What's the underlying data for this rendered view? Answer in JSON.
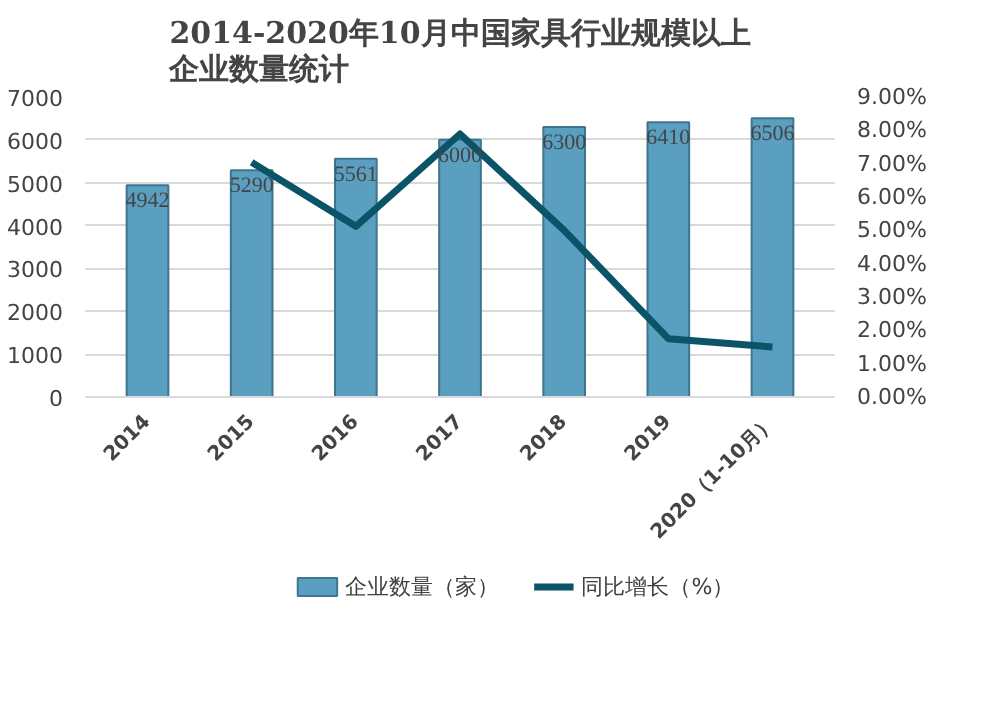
{
  "chart_data": {
    "type": "bar",
    "title": "2014-2020年10月中国家具行业规模以上企业数量统计",
    "categories": [
      "2014",
      "2015",
      "2016",
      "2017",
      "2018",
      "2019",
      "2020（1-10月）"
    ],
    "series": [
      {
        "name": "企业数量（家）",
        "color": "#5b9fc0",
        "values": [
          4942,
          5290,
          5561,
          6000,
          6300,
          6410,
          6506
        ],
        "data_labels": true
      },
      {
        "name": "同比增长（%）",
        "type": "line",
        "axis": "y2",
        "color": "#0b5468",
        "values": [
          null,
          7.04,
          5.12,
          7.89,
          5.0,
          1.75,
          1.5
        ]
      }
    ],
    "ylim": [
      0,
      7000
    ],
    "yticks": [
      0,
      1000,
      2000,
      3000,
      4000,
      5000,
      6000,
      7000
    ],
    "y2lim": [
      0,
      9
    ],
    "y2ticks": [
      {
        "value": 0,
        "label": "0.00%"
      },
      {
        "value": 1,
        "label": "1.00%"
      },
      {
        "value": 2,
        "label": "2.00%"
      },
      {
        "value": 3,
        "label": "3.00%"
      },
      {
        "value": 4,
        "label": "4.00%"
      },
      {
        "value": 5,
        "label": "5.00%"
      },
      {
        "value": 6,
        "label": "6.00%"
      },
      {
        "value": 7,
        "label": "7.00%"
      },
      {
        "value": 8,
        "label": "8.00%"
      },
      {
        "value": 9,
        "label": "9.00%"
      }
    ],
    "grid": "y",
    "legend": "bottom",
    "marker": "none",
    "line_style": "solid"
  }
}
